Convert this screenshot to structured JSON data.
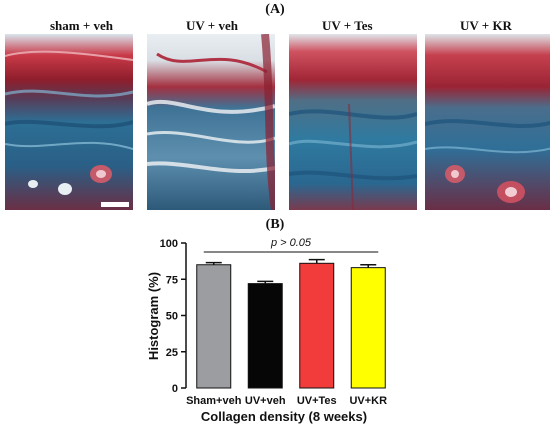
{
  "figure": {
    "panel_a_letter": "(A)",
    "panel_b_letter": "(B)",
    "micrograph_labels": [
      "sham + veh",
      "UV + veh",
      "UV + Tes",
      "UV + KR"
    ]
  },
  "chart_data": {
    "type": "bar",
    "categories": [
      "Sham+veh",
      "UV+veh",
      "UV+Tes",
      "UV+KR"
    ],
    "values": [
      85,
      72,
      86,
      83
    ],
    "errors": [
      1.5,
      1.5,
      2.5,
      2
    ],
    "colors": [
      "#9c9da1",
      "#060606",
      "#f23b3b",
      "#ffff00"
    ],
    "xlabel": "Collagen density (8 weeks)",
    "ylabel": "Histogram (%)",
    "ylim": [
      0,
      100
    ],
    "yticks": [
      0,
      25,
      50,
      75,
      100
    ],
    "annotation": "p > 0.05",
    "grid": false
  }
}
